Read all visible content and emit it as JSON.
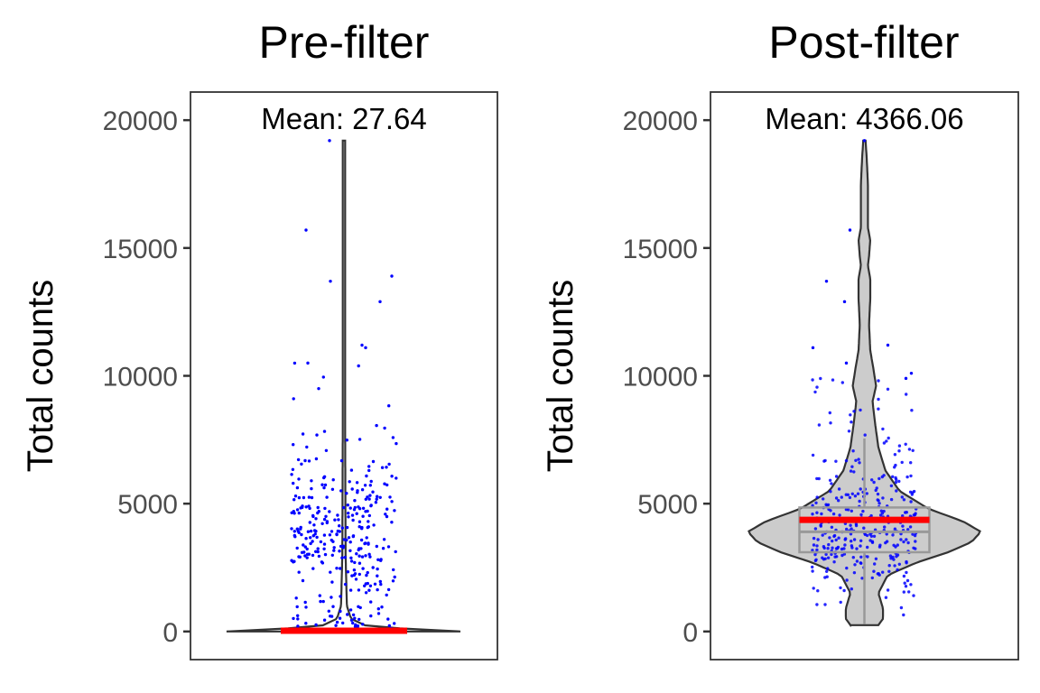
{
  "chart_data": [
    {
      "type": "violin",
      "title": "Pre-filter",
      "xlabel": "",
      "ylabel": "Total counts",
      "ylim": [
        -1100,
        21100
      ],
      "yticks": [
        0,
        5000,
        10000,
        15000,
        20000
      ],
      "yticklabels": [
        "0",
        "5000",
        "10000",
        "15000",
        "20000"
      ],
      "grid": false,
      "mean": 27.64,
      "mean_label": "Mean: 27.64",
      "mean_color": "#ff0000",
      "point_color": "#0000ff",
      "violin_fill": "#ffffff",
      "violin": {
        "y": [
          0,
          15,
          30,
          60,
          100,
          200,
          500,
          1000,
          3000,
          8000,
          19200
        ],
        "half_width": [
          1.0,
          0.97,
          0.9,
          0.75,
          0.55,
          0.2,
          0.06,
          0.025,
          0.014,
          0.01,
          0.01
        ]
      },
      "boxplot": null,
      "points_summary": {
        "min": 0,
        "max": 19200,
        "cluster_center": 3800
      }
    },
    {
      "type": "violin",
      "title": "Post-filter",
      "xlabel": "",
      "ylabel": "Total counts",
      "ylim": [
        -1100,
        21100
      ],
      "yticks": [
        0,
        5000,
        10000,
        15000,
        20000
      ],
      "yticklabels": [
        "0",
        "5000",
        "10000",
        "15000",
        "20000"
      ],
      "grid": false,
      "mean": 4366.06,
      "mean_label": "Mean: 4366.06",
      "mean_color": "#ff0000",
      "point_color": "#0000ff",
      "violin_fill": "#cccccc",
      "violin": {
        "y": [
          250,
          500,
          900,
          1500,
          2200,
          2700,
          3100,
          3500,
          3900,
          4300,
          4800,
          5500,
          6300,
          7200,
          8200,
          9000,
          9600,
          10200,
          11000,
          12000,
          13000,
          13800,
          14300,
          14700,
          15300,
          15800,
          16500,
          17500,
          18500,
          19200
        ],
        "half_width": [
          0.12,
          0.16,
          0.16,
          0.12,
          0.2,
          0.45,
          0.72,
          0.92,
          1.0,
          0.85,
          0.55,
          0.3,
          0.18,
          0.12,
          0.09,
          0.07,
          0.1,
          0.08,
          0.05,
          0.04,
          0.05,
          0.05,
          0.03,
          0.04,
          0.05,
          0.03,
          0.03,
          0.03,
          0.02,
          0.01
        ]
      },
      "boxplot": {
        "whisker_low": 300,
        "q1": 3100,
        "median": 3900,
        "q3": 4850,
        "whisker_high": 7550,
        "color": "#999999"
      },
      "points_summary": {
        "min": 250,
        "max": 19200,
        "cluster_center": 4000
      }
    }
  ]
}
